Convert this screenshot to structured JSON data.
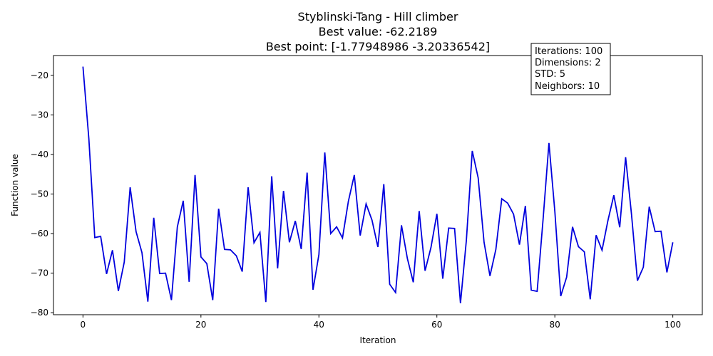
{
  "chart_data": {
    "type": "line",
    "title_lines": [
      "Styblinski-Tang - Hill climber",
      "Best value: -62.2189",
      "Best point: [-1.77948986 -3.20336542]"
    ],
    "xlabel": "Iteration",
    "ylabel": "Function value",
    "xlim": [
      -5,
      105
    ],
    "ylim": [
      -80.5,
      -15
    ],
    "xticks": [
      0,
      20,
      40,
      60,
      80,
      100
    ],
    "yticks": [
      -80,
      -70,
      -60,
      -50,
      -40,
      -30,
      -20
    ],
    "grid": false,
    "info_box": {
      "lines": [
        "Iterations: 100",
        "Dimensions: 2",
        "STD: 5",
        "Neighbors: 10"
      ],
      "placement": "top-right"
    },
    "series": [
      {
        "color": "#0000dd",
        "x": [
          0,
          1,
          2,
          3,
          4,
          5,
          6,
          7,
          8,
          9,
          10,
          11,
          12,
          13,
          14,
          15,
          16,
          17,
          18,
          19,
          20,
          21,
          22,
          23,
          24,
          25,
          26,
          27,
          28,
          29,
          30,
          31,
          32,
          33,
          34,
          35,
          36,
          37,
          38,
          39,
          40,
          41,
          42,
          43,
          44,
          45,
          46,
          47,
          48,
          49,
          50,
          51,
          52,
          53,
          54,
          55,
          56,
          57,
          58,
          59,
          60,
          61,
          62,
          63,
          64,
          65,
          66,
          67,
          68,
          69,
          70,
          71,
          72,
          73,
          74,
          75,
          76,
          77,
          78,
          79,
          80,
          81,
          82,
          83,
          84,
          85,
          86,
          87,
          88,
          89,
          90,
          91,
          92,
          93,
          94,
          95,
          96,
          97,
          98,
          99,
          100
        ],
        "y": [
          -17.8,
          -36.1,
          -61.0,
          -60.7,
          -70.2,
          -64.2,
          -74.5,
          -67.2,
          -48.3,
          -59.5,
          -64.8,
          -77.2,
          -56.0,
          -70.1,
          -70.0,
          -76.8,
          -58.3,
          -51.7,
          -72.2,
          -45.2,
          -65.9,
          -67.6,
          -76.8,
          -53.7,
          -64.0,
          -64.1,
          -65.6,
          -69.6,
          -48.3,
          -62.3,
          -59.7,
          -77.3,
          -45.5,
          -68.8,
          -49.2,
          -62.2,
          -56.8,
          -63.9,
          -44.6,
          -74.2,
          -65.3,
          -39.5,
          -60.0,
          -58.3,
          -61.1,
          -51.8,
          -45.2,
          -60.5,
          -52.5,
          -56.6,
          -63.4,
          -47.5,
          -72.8,
          -74.9,
          -57.9,
          -66.3,
          -72.3,
          -54.3,
          -69.4,
          -63.5,
          -55.0,
          -71.4,
          -58.6,
          -58.7,
          -77.6,
          -61.7,
          -39.1,
          -45.9,
          -62.2,
          -70.7,
          -64.0,
          -51.2,
          -52.3,
          -55.1,
          -62.8,
          -53.0,
          -74.3,
          -74.6,
          -56.5,
          -37.1,
          -54.4,
          -75.8,
          -71.0,
          -58.3,
          -63.3,
          -64.6,
          -76.6,
          -60.4,
          -64.2,
          -56.7,
          -50.3,
          -58.4,
          -40.7,
          -55.2,
          -71.9,
          -68.5,
          -53.2,
          -59.5,
          -59.4,
          -69.8,
          -62.2
        ]
      }
    ]
  }
}
